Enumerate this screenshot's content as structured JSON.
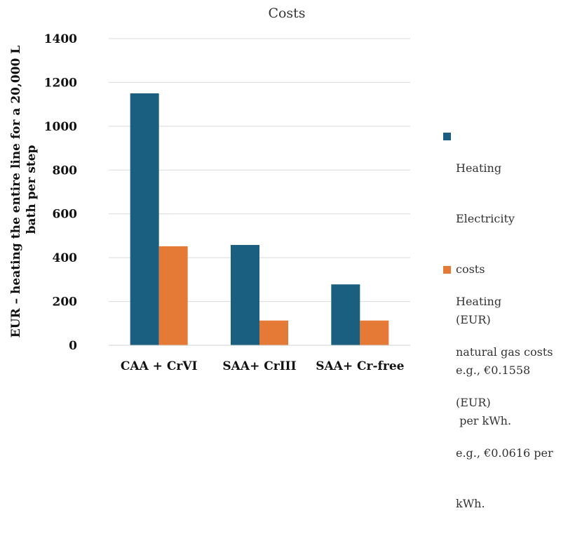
{
  "chart_data": {
    "type": "bar",
    "title": "Costs",
    "ylabel_lines": [
      "EUR – heating the entire line for a 20,000 L",
      "bath per step"
    ],
    "xlabel": "",
    "categories": [
      "CAA + CrVI",
      "SAA+ CrIII",
      "SAA+ Cr-free"
    ],
    "series": [
      {
        "name": "Heating Electricity costs (EUR) e.g., €0.1558 per kWh.",
        "color": "#1a5e80",
        "values": [
          1150,
          458,
          278
        ]
      },
      {
        "name": "Heating natural gas costs (EUR) e.g., €0.0616 per kWh.",
        "color": "#e47a35",
        "values": [
          452,
          113,
          113
        ]
      }
    ],
    "ylim": [
      0,
      1400
    ],
    "yticks": [
      0,
      200,
      400,
      600,
      800,
      1000,
      1200,
      1400
    ],
    "grid": true,
    "legend_position": "right"
  },
  "legend": [
    {
      "lines": [
        "Heating",
        "Electricity",
        "costs",
        "(EUR)",
        "e.g., €0.1558",
        " per kWh."
      ]
    },
    {
      "lines": [
        "Heating",
        "natural gas costs",
        "(EUR)",
        "e.g., €0.0616 per",
        "kWh."
      ]
    }
  ]
}
